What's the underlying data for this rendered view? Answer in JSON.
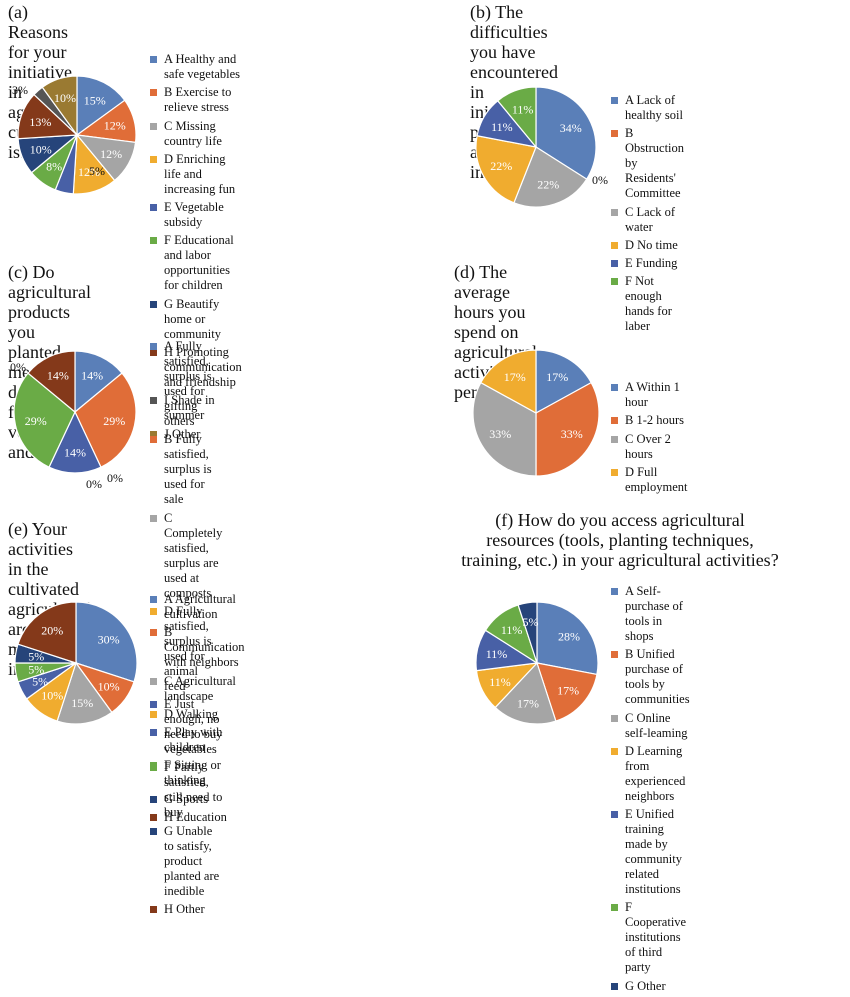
{
  "colors": [
    "#5a7fb8",
    "#e06d38",
    "#a5a5a5",
    "#f0ac2f",
    "#4860a6",
    "#6aab46",
    "#26447a",
    "#84391a",
    "#555555",
    "#9a7a32"
  ],
  "chart_data": [
    {
      "type": "pie",
      "title": "(a) Reasons for your initiative\nin agricultural cultivation is:",
      "categories": [
        "A Healthy and safe vegetables",
        "B Exercise to relieve stress",
        "C Missing country life",
        "D Enriching life and increasing fun",
        "E Vegetable subsidy",
        "F Educational and labor\nopportunities for children",
        "G Beautify home or community",
        "H Promoting communication and friendship",
        "I  Shade in summer",
        "J  Other"
      ],
      "values": [
        15,
        12,
        12,
        12,
        5,
        8,
        10,
        13,
        3,
        10
      ],
      "data_labels": [
        "15%",
        "12%",
        "12%",
        "12%",
        "5%",
        "8%",
        "10%",
        "13%",
        "3%",
        "10%"
      ],
      "legend": "right"
    },
    {
      "type": "pie",
      "title": "(b) The difficulties you have encountered in\ninitiating planting activities include?",
      "categories": [
        "A Lack of healthy soil",
        "B Obstruction by\nResidents' Committee",
        "C Lack of water",
        "D No time",
        "E Funding",
        "F Not enough hands for laber"
      ],
      "values": [
        34,
        0,
        22,
        22,
        11,
        11
      ],
      "data_labels": [
        "34%",
        "0%",
        "22%",
        "22%",
        "11%",
        "11%"
      ],
      "legend": "right"
    },
    {
      "type": "pie",
      "title": "(c) Do agricultural products you\nplanted meet your daily need\nfor vegetables and fruits?",
      "categories": [
        "A Fully satisfied, surplus is used for gifting others",
        "B Fully satisfied, surplus is used for sale",
        "C Completely satisfied, surplus are used at composts",
        "D Fully satisfied, surplus is used for animal feed",
        "E Just enough, no need to buy vegetables",
        "F Partly satisfied, still need to buy",
        "G Unable to satisfy, product planted are inedible",
        "H Other"
      ],
      "values": [
        14,
        29,
        0,
        0,
        14,
        29,
        0,
        14
      ],
      "data_labels": [
        "14%",
        "29%",
        "0%",
        "0%",
        "14%",
        "29%",
        "0%",
        "14%"
      ],
      "legend": "right"
    },
    {
      "type": "pie",
      "title": "(d) The average hours you spend on\nagricultural activities per day is:",
      "categories": [
        "A Within 1 hour",
        "B 1-2 hours",
        "C Over 2 hours",
        "D Full employment"
      ],
      "values": [
        17,
        33,
        33,
        17
      ],
      "data_labels": [
        "17%",
        "33%",
        "33%",
        "17%"
      ],
      "legend": "right"
    },
    {
      "type": "pie",
      "title": "(e) Your activities in the cultivated\nagricultural area mainly include:",
      "categories": [
        "A Agricultural cultivation",
        "B Communication with neighbors",
        "C Agricultural landscape",
        "D Walking",
        "E Play with children",
        "F Sitting or thinking",
        "G Sports",
        "H Education"
      ],
      "values": [
        30,
        10,
        15,
        10,
        5,
        5,
        5,
        20
      ],
      "data_labels": [
        "30%",
        "10%",
        "15%",
        "10%",
        "5%",
        "5%",
        "5%",
        "20%"
      ],
      "legend": "right"
    },
    {
      "type": "pie",
      "title": "(f) How do you access agricultural\nresources (tools, planting techniques,\ntraining, etc.) in your agricultural activities?",
      "categories": [
        "A Self-purchase of tools in shops",
        "B Unified purchase of\ntools by communities",
        "C Online self-leaming",
        "D Learning from experienced neighbors",
        "E Unified training made by\ncommunity related institutions",
        "F Cooperative institutions of third party",
        "G Other"
      ],
      "values": [
        28,
        17,
        17,
        11,
        11,
        11,
        5
      ],
      "data_labels": [
        "28%",
        "17%",
        "17%",
        "11%",
        "11%",
        "11%",
        "5%"
      ],
      "legend": "right"
    }
  ]
}
